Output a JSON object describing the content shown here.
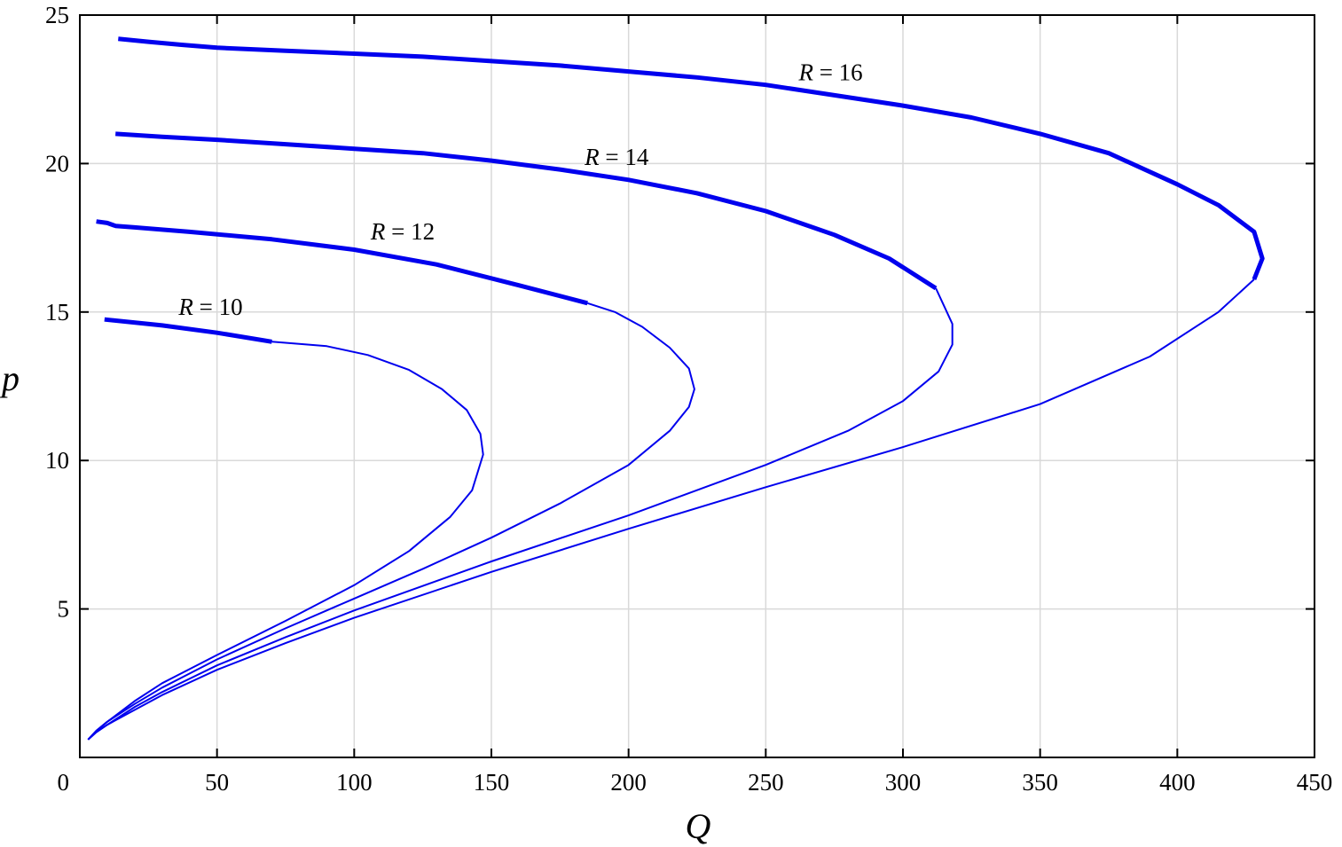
{
  "chart_data": {
    "type": "line",
    "xlabel": "Q",
    "ylabel": "p",
    "xlim": [
      0,
      450
    ],
    "ylim": [
      0,
      25
    ],
    "x_ticks": [
      0,
      50,
      100,
      150,
      200,
      250,
      300,
      350,
      400,
      450
    ],
    "y_ticks": [
      5,
      10,
      15,
      20,
      25
    ],
    "y_tick_labels": [
      "5",
      "10",
      "15",
      "20",
      "25"
    ],
    "x_tick_labels": [
      "0",
      "50",
      "100",
      "150",
      "200",
      "250",
      "300",
      "350",
      "400",
      "450"
    ],
    "grid": true,
    "line_color": "#0000ee",
    "series": [
      {
        "name": "R = 10",
        "label_var": "R",
        "label_rest": " = 10",
        "label_pos": [
          36,
          14.9
        ],
        "points": [
          [
            3,
            0.6
          ],
          [
            6,
            0.9
          ],
          [
            10,
            1.2
          ],
          [
            20,
            1.9
          ],
          [
            30,
            2.5
          ],
          [
            50,
            3.45
          ],
          [
            75,
            4.6
          ],
          [
            100,
            5.8
          ],
          [
            120,
            6.95
          ],
          [
            135,
            8.1
          ],
          [
            143,
            9.0
          ],
          [
            147,
            10.2
          ],
          [
            146,
            10.9
          ],
          [
            141,
            11.7
          ],
          [
            132,
            12.4
          ],
          [
            120,
            13.05
          ],
          [
            105,
            13.55
          ],
          [
            90,
            13.85
          ],
          [
            70,
            14.0
          ],
          [
            50,
            14.3
          ],
          [
            30,
            14.55
          ],
          [
            9,
            14.75
          ]
        ],
        "bold_from_index": 18
      },
      {
        "name": "R = 12",
        "label_var": "R",
        "label_rest": " = 12",
        "label_pos": [
          106,
          17.45
        ],
        "points": [
          [
            3,
            0.6
          ],
          [
            6,
            0.9
          ],
          [
            10,
            1.2
          ],
          [
            20,
            1.8
          ],
          [
            30,
            2.35
          ],
          [
            50,
            3.3
          ],
          [
            75,
            4.35
          ],
          [
            100,
            5.35
          ],
          [
            125,
            6.35
          ],
          [
            150,
            7.4
          ],
          [
            175,
            8.55
          ],
          [
            200,
            9.85
          ],
          [
            215,
            11.0
          ],
          [
            222,
            11.8
          ],
          [
            224,
            12.4
          ],
          [
            222,
            13.1
          ],
          [
            215,
            13.8
          ],
          [
            205,
            14.5
          ],
          [
            195,
            15.0
          ],
          [
            185,
            15.3
          ],
          [
            160,
            15.9
          ],
          [
            130,
            16.6
          ],
          [
            100,
            17.1
          ],
          [
            70,
            17.45
          ],
          [
            40,
            17.7
          ],
          [
            20,
            17.85
          ],
          [
            13,
            17.9
          ],
          [
            10,
            18.0
          ],
          [
            6,
            18.05
          ]
        ],
        "bold_from_index": 19
      },
      {
        "name": "R = 14",
        "label_var": "R",
        "label_rest": " = 14",
        "label_pos": [
          184,
          19.95
        ],
        "points": [
          [
            3,
            0.6
          ],
          [
            6,
            0.85
          ],
          [
            10,
            1.1
          ],
          [
            20,
            1.7
          ],
          [
            30,
            2.2
          ],
          [
            50,
            3.1
          ],
          [
            75,
            4.05
          ],
          [
            100,
            4.95
          ],
          [
            150,
            6.6
          ],
          [
            200,
            8.15
          ],
          [
            250,
            9.85
          ],
          [
            280,
            11.0
          ],
          [
            300,
            12.0
          ],
          [
            313,
            13.0
          ],
          [
            318,
            13.9
          ],
          [
            318,
            14.6
          ],
          [
            315,
            15.2
          ],
          [
            312,
            15.8
          ],
          [
            295,
            16.8
          ],
          [
            275,
            17.6
          ],
          [
            250,
            18.4
          ],
          [
            225,
            19.0
          ],
          [
            200,
            19.45
          ],
          [
            175,
            19.8
          ],
          [
            150,
            20.1
          ],
          [
            125,
            20.35
          ],
          [
            100,
            20.5
          ],
          [
            75,
            20.65
          ],
          [
            50,
            20.8
          ],
          [
            30,
            20.9
          ],
          [
            13,
            21.0
          ]
        ],
        "bold_from_index": 17
      },
      {
        "name": "R = 16",
        "label_var": "R",
        "label_rest": " = 16",
        "label_pos": [
          262,
          22.8
        ],
        "points": [
          [
            3,
            0.6
          ],
          [
            6,
            0.85
          ],
          [
            10,
            1.1
          ],
          [
            20,
            1.6
          ],
          [
            30,
            2.1
          ],
          [
            50,
            2.95
          ],
          [
            75,
            3.85
          ],
          [
            100,
            4.7
          ],
          [
            150,
            6.25
          ],
          [
            200,
            7.7
          ],
          [
            250,
            9.1
          ],
          [
            300,
            10.45
          ],
          [
            350,
            11.9
          ],
          [
            390,
            13.5
          ],
          [
            415,
            15.0
          ],
          [
            428,
            16.1
          ],
          [
            431,
            16.8
          ],
          [
            428,
            17.7
          ],
          [
            415,
            18.6
          ],
          [
            400,
            19.3
          ],
          [
            375,
            20.35
          ],
          [
            350,
            21.0
          ],
          [
            325,
            21.55
          ],
          [
            300,
            21.95
          ],
          [
            275,
            22.3
          ],
          [
            250,
            22.65
          ],
          [
            225,
            22.9
          ],
          [
            200,
            23.1
          ],
          [
            175,
            23.3
          ],
          [
            150,
            23.45
          ],
          [
            125,
            23.6
          ],
          [
            100,
            23.7
          ],
          [
            75,
            23.8
          ],
          [
            50,
            23.9
          ],
          [
            37,
            24.0
          ],
          [
            25,
            24.1
          ],
          [
            14,
            24.2
          ]
        ],
        "bold_from_index": 15
      }
    ]
  }
}
